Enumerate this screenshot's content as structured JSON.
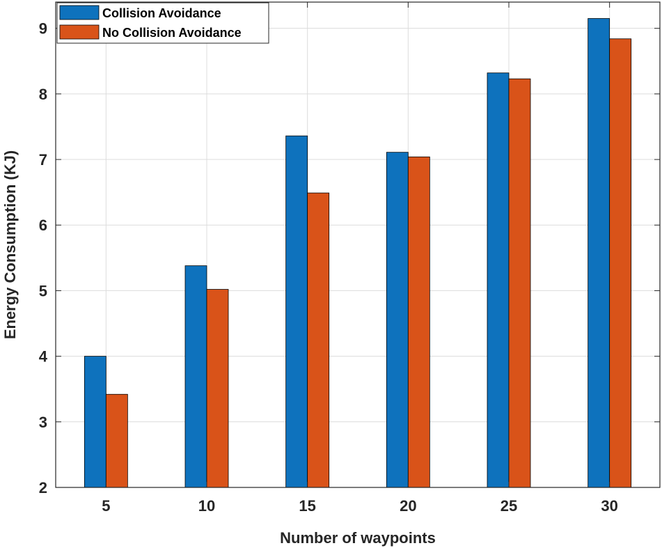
{
  "chart_data": {
    "type": "bar",
    "title": "",
    "xlabel": "Number of waypoints",
    "ylabel": "Energy Consumption (KJ)",
    "categories": [
      "5",
      "10",
      "15",
      "20",
      "25",
      "30"
    ],
    "series": [
      {
        "name": "Collision Avoidance",
        "color": "#0E72BD",
        "values": [
          4.0,
          5.38,
          7.36,
          7.11,
          8.32,
          9.15
        ]
      },
      {
        "name": "No Collision Avoidance",
        "color": "#D95319",
        "values": [
          3.42,
          5.02,
          6.49,
          7.04,
          8.23,
          8.84
        ]
      }
    ],
    "ylim": [
      2,
      9.4
    ],
    "yticks": [
      "2",
      "3",
      "4",
      "5",
      "6",
      "7",
      "8",
      "9"
    ],
    "grid": true,
    "legend_location": "top-left"
  }
}
